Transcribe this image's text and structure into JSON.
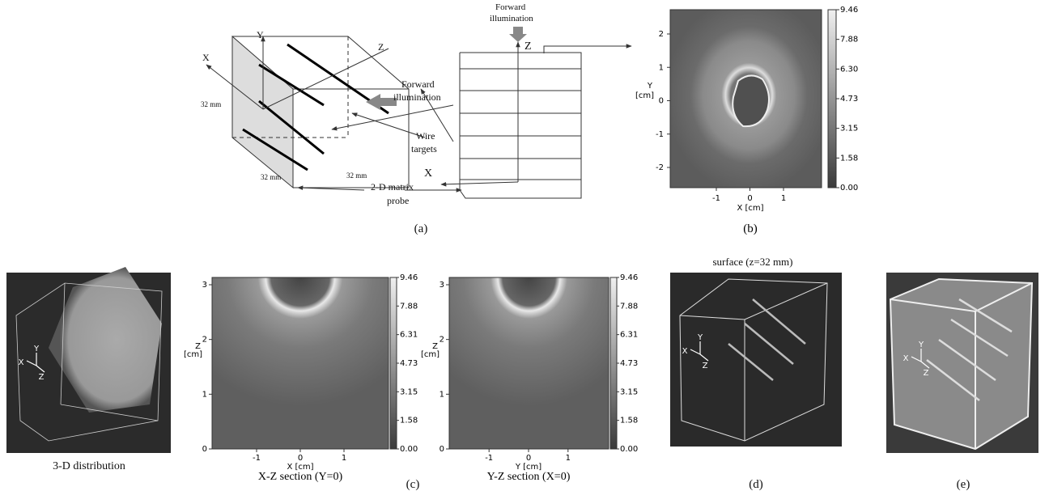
{
  "panel_a": {
    "caption": "(a)",
    "cube": {
      "y": "Y",
      "x": "X",
      "z": "Z",
      "height": "32 mm",
      "depth": "32 mm",
      "width": "32 mm"
    },
    "side_illumination": [
      "Forward",
      "illumination"
    ],
    "wire_targets": [
      "Wire",
      "targets"
    ],
    "probe": [
      "2-D matrix",
      "probe"
    ],
    "top_illumination": [
      "Forward",
      "illumination"
    ],
    "front_z": "Z",
    "front_x": "X"
  },
  "panel_b": {
    "caption": "(b)",
    "y_label": [
      "Y",
      "[cm]"
    ],
    "x_label": "X [cm]",
    "yticks": [
      "2",
      "1",
      "0",
      "-1",
      "-2"
    ],
    "xticks": [
      "-1",
      "0",
      "1"
    ],
    "colorbar": [
      "9.46",
      "7.88",
      "6.30",
      "4.73",
      "3.15",
      "1.58",
      "0.00"
    ]
  },
  "distribution_3d": {
    "caption": "3-D distribution",
    "axes": [
      "X",
      "Y",
      "Z"
    ]
  },
  "panel_c": {
    "caption": "(c)",
    "sections": [
      {
        "caption": "X-Z section (Y=0)",
        "x_label": "X [cm]",
        "y_label": [
          "Z",
          "[cm]"
        ],
        "xticks": [
          "-1",
          "0",
          "1"
        ],
        "yticks": [
          "0",
          "1",
          "2",
          "3"
        ],
        "colorbar": [
          "9.46",
          "7.88",
          "6.31",
          "4.73",
          "3.15",
          "1.58",
          "0.00"
        ]
      },
      {
        "caption": "Y-Z section (X=0)",
        "x_label": "Y [cm]",
        "y_label": [
          "Z",
          "[cm]"
        ],
        "xticks": [
          "-1",
          "0",
          "1"
        ],
        "yticks": [
          "0",
          "1",
          "2",
          "3"
        ],
        "colorbar": [
          "9.46",
          "7.88",
          "6.31",
          "4.73",
          "3.15",
          "1.58",
          "0.00"
        ]
      }
    ]
  },
  "panel_d": {
    "title": "surface (z=32 mm)",
    "caption": "(d)",
    "axes": [
      "X",
      "Y",
      "Z"
    ]
  },
  "panel_e": {
    "caption": "(e)",
    "axes": [
      "X",
      "Y",
      "Z"
    ]
  }
}
